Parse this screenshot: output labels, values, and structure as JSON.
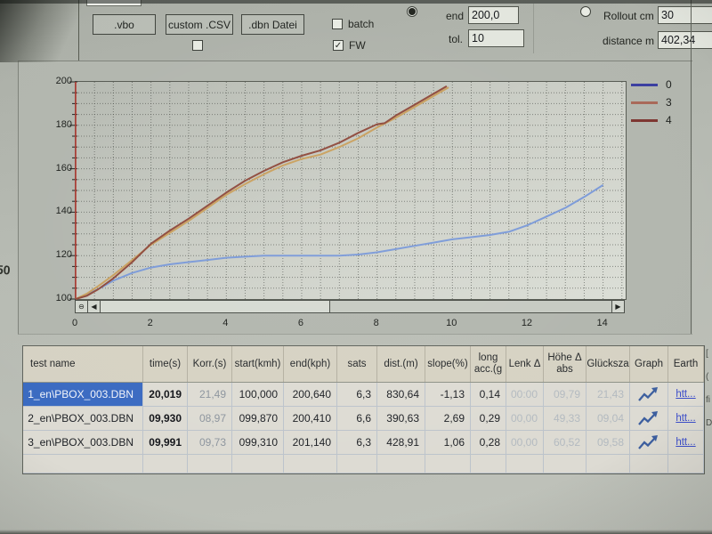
{
  "toolbar": {
    "buttons": {
      "vbo": ".vbo",
      "custom_csv": "custom .CSV",
      "dbn_datei": ".dbn Datei"
    },
    "checkbox_batch": "batch",
    "checkbox_fw": "FW",
    "check_glyph": "✓",
    "end_label": "end",
    "end_value": "200,0",
    "tol_label": "tol.",
    "tol_value": "10",
    "rollout_label": "Rollout cm",
    "rollout_value": "30",
    "distance_label": "distance m",
    "distance_value": "402,34"
  },
  "chart": {
    "scrollbar": {
      "zoom_out_glyph": "⊖",
      "left_glyph": "◀",
      "right_glyph": "▶"
    }
  },
  "chart_data": {
    "type": "line",
    "title": "",
    "xlabel": "",
    "ylabel": "",
    "xlim": [
      0,
      14
    ],
    "ylim": [
      100,
      200
    ],
    "x_ticks": [
      0,
      2,
      4,
      6,
      8,
      10,
      12,
      14
    ],
    "y_ticks": [
      100,
      120,
      140,
      160,
      180,
      200
    ],
    "grid": true,
    "legend_position": "right",
    "axis_color": "#b23a32",
    "series": [
      {
        "name": "0",
        "color": "#3b3fa0",
        "chart_color": "#7b9ad8",
        "points": [
          [
            0,
            100
          ],
          [
            0.3,
            102
          ],
          [
            0.7,
            105.5
          ],
          [
            1,
            108.5
          ],
          [
            1.5,
            112
          ],
          [
            2,
            114.5
          ],
          [
            2.5,
            116
          ],
          [
            3,
            117
          ],
          [
            3.5,
            118
          ],
          [
            4,
            119
          ],
          [
            4.5,
            119.5
          ],
          [
            5,
            120
          ],
          [
            5.5,
            120
          ],
          [
            6,
            120
          ],
          [
            6.5,
            120
          ],
          [
            7,
            120
          ],
          [
            7.5,
            120.5
          ],
          [
            8,
            121.5
          ],
          [
            8.5,
            123
          ],
          [
            9,
            124.5
          ],
          [
            9.5,
            126
          ],
          [
            10,
            127.5
          ],
          [
            10.5,
            128.5
          ],
          [
            11,
            129.5
          ],
          [
            11.5,
            131
          ],
          [
            12,
            134
          ],
          [
            12.5,
            138
          ],
          [
            13,
            142
          ],
          [
            13.5,
            147
          ],
          [
            14,
            152.5
          ]
        ]
      },
      {
        "name": "3",
        "color": "#a86858",
        "chart_color": "#c9a05e",
        "points": [
          [
            0,
            100
          ],
          [
            0.3,
            102.5
          ],
          [
            0.6,
            106
          ],
          [
            1,
            111
          ],
          [
            1.5,
            118
          ],
          [
            2,
            125
          ],
          [
            2.5,
            130.5
          ],
          [
            3,
            136
          ],
          [
            3.5,
            142
          ],
          [
            4,
            148
          ],
          [
            4.5,
            153
          ],
          [
            5,
            157.5
          ],
          [
            5.5,
            161.5
          ],
          [
            6,
            164.5
          ],
          [
            6.5,
            166.5
          ],
          [
            7,
            170
          ],
          [
            7.5,
            174
          ],
          [
            8,
            179
          ],
          [
            8.5,
            183.5
          ],
          [
            9,
            188.5
          ],
          [
            9.5,
            193.5
          ],
          [
            9.9,
            197.5
          ]
        ]
      },
      {
        "name": "4",
        "color": "#7d3530",
        "chart_color": "#8f4a3c",
        "points": [
          [
            0,
            100
          ],
          [
            0.3,
            101.5
          ],
          [
            0.6,
            104.5
          ],
          [
            1,
            109.5
          ],
          [
            1.5,
            117
          ],
          [
            2,
            125.5
          ],
          [
            2.5,
            131.5
          ],
          [
            3,
            137
          ],
          [
            3.5,
            143
          ],
          [
            4,
            149
          ],
          [
            4.5,
            154.5
          ],
          [
            5,
            159
          ],
          [
            5.5,
            163
          ],
          [
            6,
            166
          ],
          [
            6.5,
            168.5
          ],
          [
            7,
            172
          ],
          [
            7.5,
            176.5
          ],
          [
            8,
            180.5
          ],
          [
            8.2,
            181
          ],
          [
            8.5,
            184.5
          ],
          [
            9,
            189.5
          ],
          [
            9.5,
            194.5
          ],
          [
            9.85,
            198
          ]
        ]
      }
    ]
  },
  "table": {
    "headers": [
      "test name",
      "time(s)",
      "Korr.(s)",
      "start(kmh)",
      "end(kph)",
      "sats",
      "dist.(m)",
      "slope(%)",
      "long acc.(g",
      "Lenk Δ",
      "Höhe Δ abs",
      "Glücksza",
      "Graph",
      "Earth"
    ],
    "rows": [
      {
        "name": "1_en\\PBOX_003.DBN",
        "selected": true,
        "values": [
          "20,019",
          "21,49",
          "100,000",
          "200,640",
          "6,3",
          "830,64",
          "-1,13",
          "0,14",
          "00:00",
          "09,79",
          "21,43"
        ],
        "graph_icon": "trend-up-arrow",
        "earth_link": "htt..."
      },
      {
        "name": "2_en\\PBOX_003.DBN",
        "selected": false,
        "values": [
          "09,930",
          "08,97",
          "099,870",
          "200,410",
          "6,6",
          "390,63",
          "2,69",
          "0,29",
          "00,00",
          "49,33",
          "09,04"
        ],
        "graph_icon": "trend-up-arrow",
        "earth_link": "htt..."
      },
      {
        "name": "3_en\\PBOX_003.DBN",
        "selected": false,
        "values": [
          "09,991",
          "09,73",
          "099,310",
          "201,140",
          "6,3",
          "428,91",
          "1,06",
          "0,28",
          "00,00",
          "60,52",
          "09,58"
        ],
        "graph_icon": "trend-up-arrow",
        "earth_link": "htt..."
      }
    ]
  },
  "photo_artifacts": {
    "left_edge_text": "50",
    "right_edge_fragments": [
      "[",
      "(",
      "fi",
      "D"
    ]
  }
}
